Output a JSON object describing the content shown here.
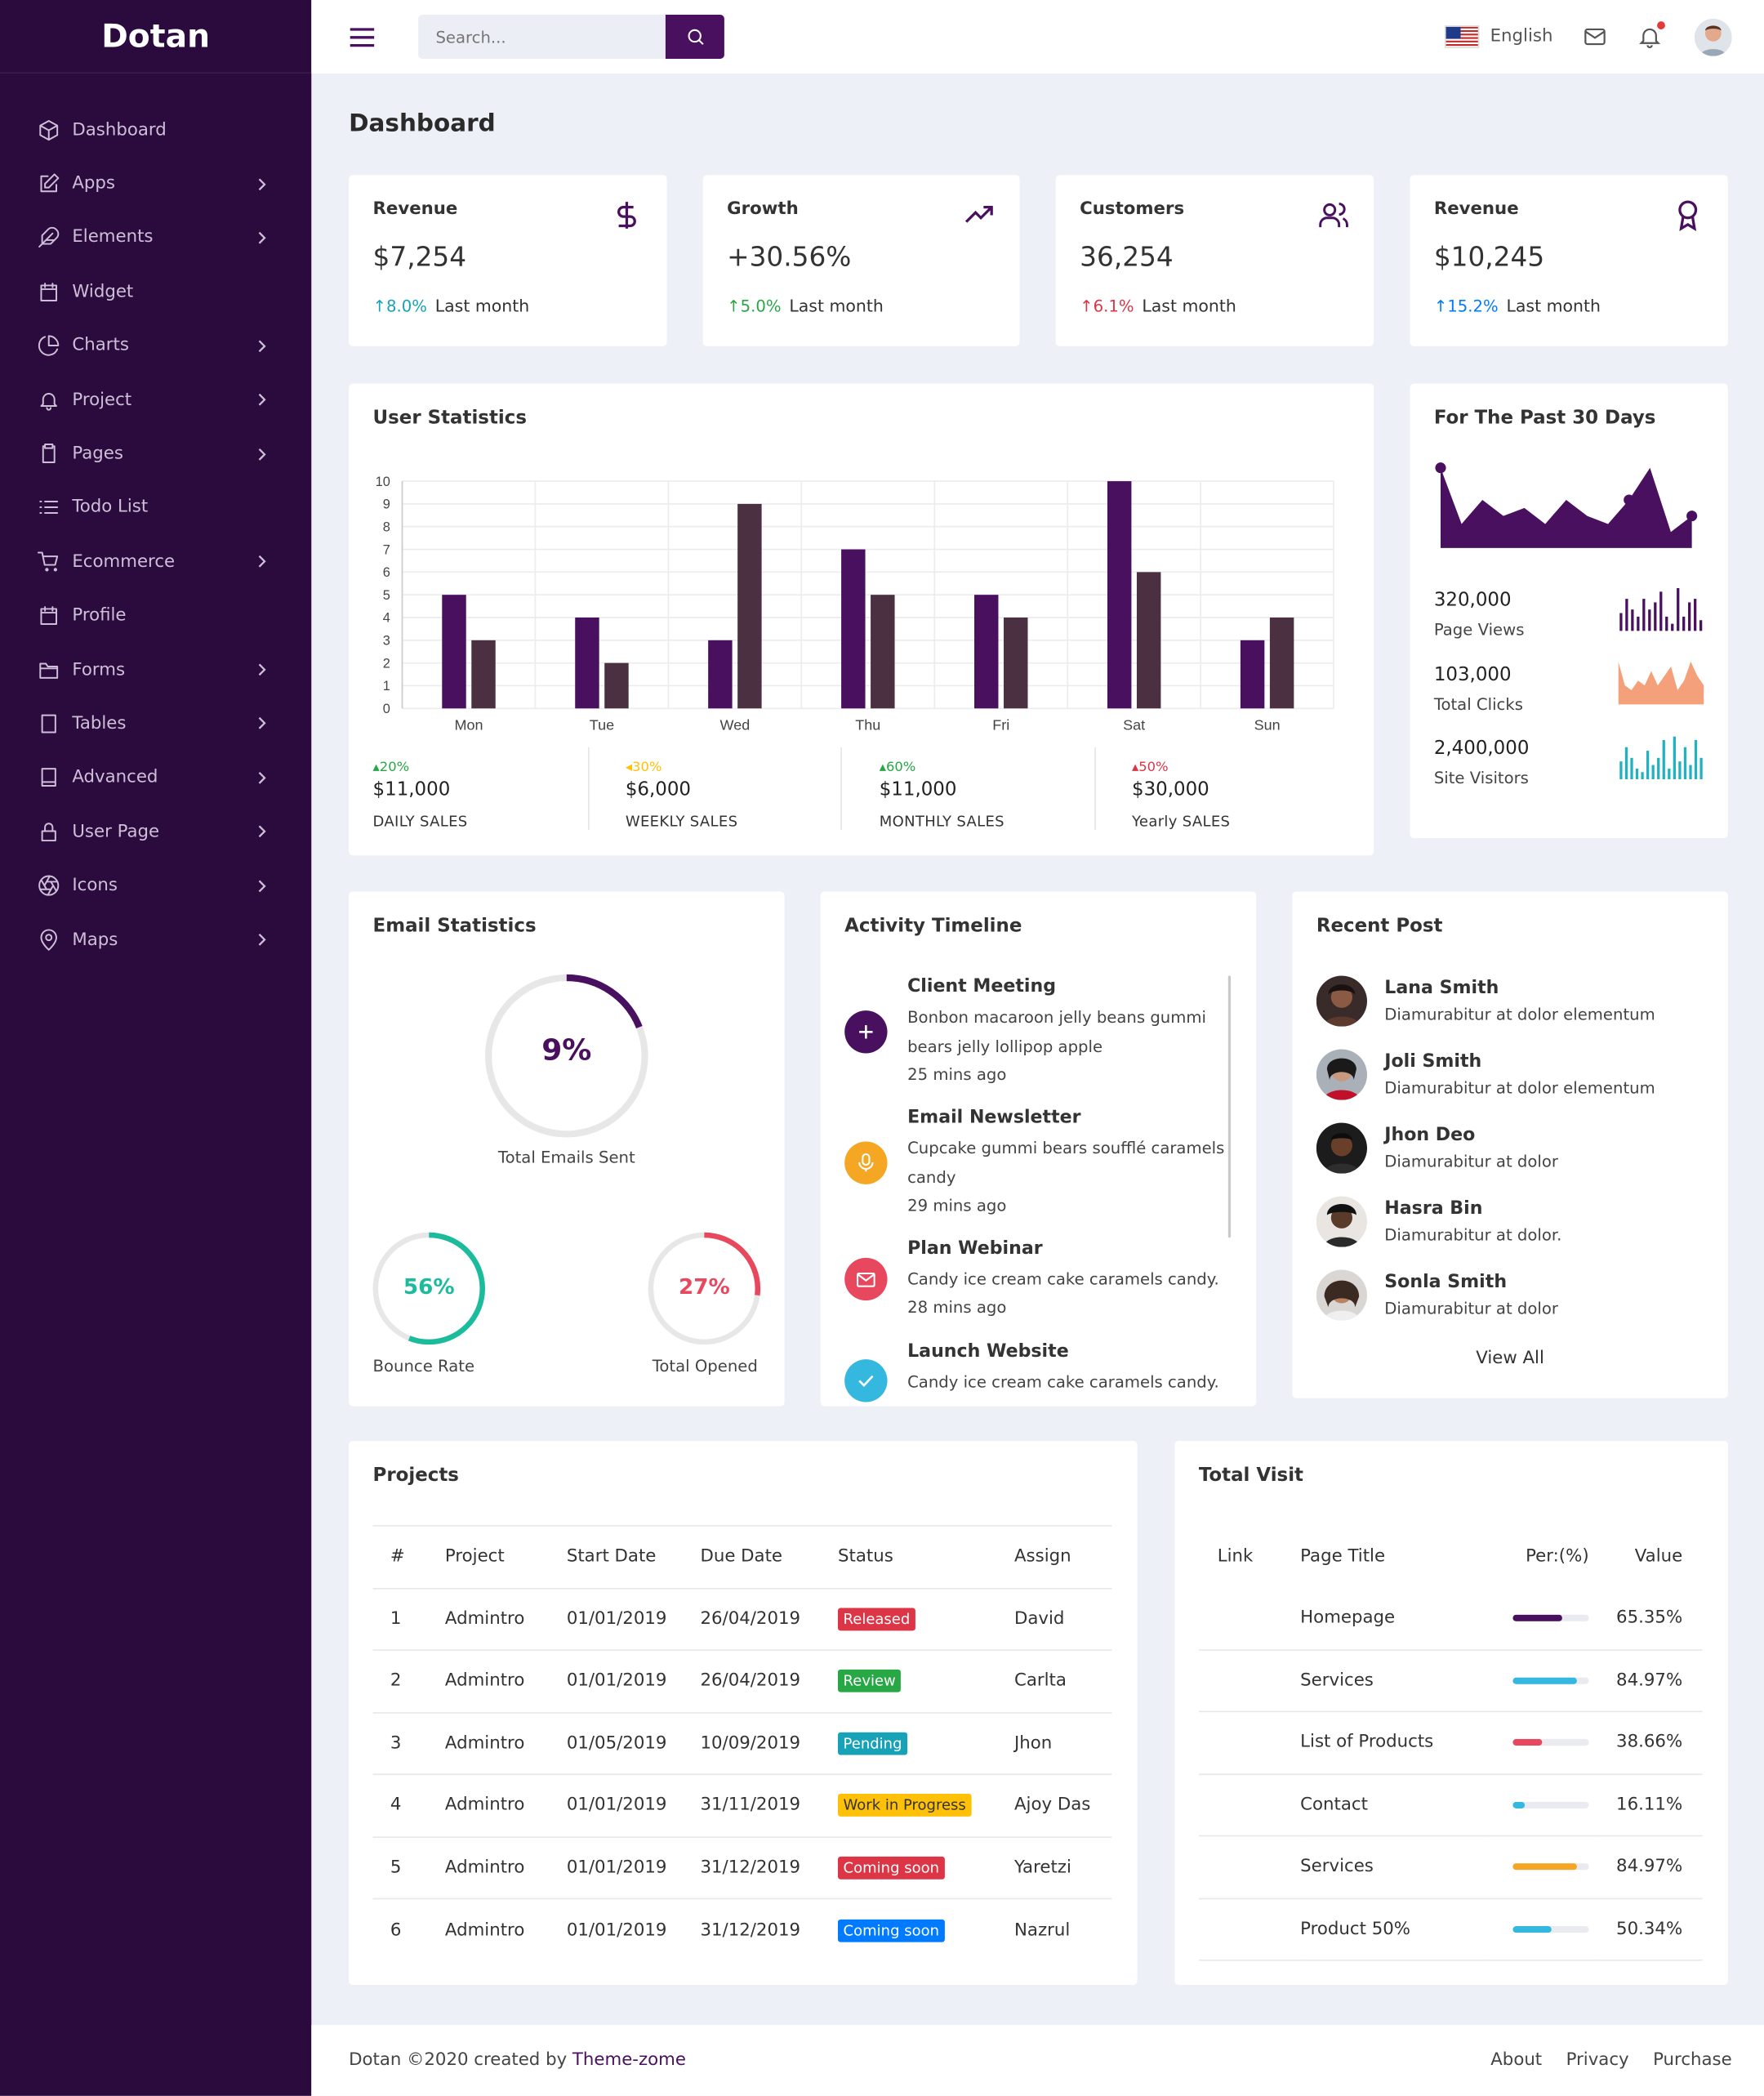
{
  "brand": {
    "name": "Dotan"
  },
  "sidebar": {
    "items": [
      {
        "label": "Dashboard",
        "icon": "cube-icon",
        "has_arrow": false
      },
      {
        "label": "Apps",
        "icon": "edit-icon",
        "has_arrow": true
      },
      {
        "label": "Elements",
        "icon": "feather-icon",
        "has_arrow": true
      },
      {
        "label": "Widget",
        "icon": "calendar-icon",
        "has_arrow": false
      },
      {
        "label": "Charts",
        "icon": "pie-chart-icon",
        "has_arrow": true
      },
      {
        "label": "Project",
        "icon": "bell-icon",
        "has_arrow": true
      },
      {
        "label": "Pages",
        "icon": "clipboard-icon",
        "has_arrow": true
      },
      {
        "label": "Todo List",
        "icon": "list-icon",
        "has_arrow": false
      },
      {
        "label": "Ecommerce",
        "icon": "cart-icon",
        "has_arrow": true
      },
      {
        "label": "Profile",
        "icon": "calendar-icon",
        "has_arrow": false
      },
      {
        "label": "Forms",
        "icon": "folder-icon",
        "has_arrow": true
      },
      {
        "label": "Tables",
        "icon": "table-icon",
        "has_arrow": true
      },
      {
        "label": "Advanced",
        "icon": "tablet-icon",
        "has_arrow": true
      },
      {
        "label": "User Page",
        "icon": "lock-icon",
        "has_arrow": true
      },
      {
        "label": "Icons",
        "icon": "aperture-icon",
        "has_arrow": true
      },
      {
        "label": "Maps",
        "icon": "map-pin-icon",
        "has_arrow": true
      }
    ]
  },
  "header": {
    "search_placeholder": "Search...",
    "language": "English"
  },
  "page": {
    "title": "Dashboard"
  },
  "stats": [
    {
      "title": "Revenue",
      "value": "$7,254",
      "change": "8.0%",
      "change_color": "#17a2b8",
      "period": "Last month",
      "icon": "dollar-icon"
    },
    {
      "title": "Growth",
      "value": "+30.56%",
      "change": "5.0%",
      "change_color": "#28a745",
      "period": "Last month",
      "icon": "trending-up-icon"
    },
    {
      "title": "Customers",
      "value": "36,254",
      "change": "6.1%",
      "change_color": "#dc3545",
      "period": "Last month",
      "icon": "users-icon"
    },
    {
      "title": "Revenue",
      "value": "$10,245",
      "change": "15.2%",
      "change_color": "#007bff",
      "period": "Last month",
      "icon": "award-icon"
    }
  ],
  "user_statistics": {
    "title": "User Statistics",
    "sales": [
      {
        "change": "20%",
        "change_color": "#28a745",
        "value": "$11,000",
        "label": "DAILY SALES"
      },
      {
        "change": "30%",
        "change_color": "#ffc107",
        "value": "$6,000",
        "label": "WEEKLY SALES"
      },
      {
        "change": "60%",
        "change_color": "#28a745",
        "value": "$11,000",
        "label": "MONTHLY SALES"
      },
      {
        "change": "50%",
        "change_color": "#dc3545",
        "value": "$30,000",
        "label": "Yearly SALES"
      }
    ]
  },
  "chart_data": {
    "type": "bar",
    "categories": [
      "Mon",
      "Tue",
      "Wed",
      "Thu",
      "Fri",
      "Sat",
      "Sun"
    ],
    "series": [
      {
        "values": [
          5,
          4,
          3,
          7,
          5,
          10,
          3
        ],
        "color": "#4a1060"
      },
      {
        "values": [
          3,
          2,
          9,
          5,
          4,
          6,
          4
        ],
        "color": "#4a3040"
      }
    ],
    "ylim": [
      0,
      10
    ],
    "yticks": [
      0,
      1,
      2,
      3,
      4,
      5,
      6,
      7,
      8,
      9,
      10
    ],
    "grid": true
  },
  "past30": {
    "title": "For The Past 30 Days",
    "area_values": [
      10,
      3,
      6,
      4,
      5,
      3,
      6,
      4,
      3,
      6,
      10,
      2,
      4
    ],
    "stats": [
      {
        "value": "320,000",
        "label": "Page Views",
        "color": "#4a1060",
        "bars": [
          5,
          9,
          6,
          4,
          9,
          6,
          8,
          11,
          4,
          2,
          12,
          4,
          8,
          9,
          3
        ]
      },
      {
        "value": "103,000",
        "label": "Total Clicks",
        "color": "#f4a07a",
        "bars": [
          9,
          4,
          3,
          5,
          4,
          7,
          4,
          6,
          8,
          3,
          5,
          9,
          6,
          4
        ]
      },
      {
        "value": "2,400,000",
        "label": "Site Visitors",
        "color": "#20b2c0",
        "bars": [
          5,
          9,
          6,
          3,
          2,
          8,
          4,
          6,
          11,
          3,
          12,
          5,
          9,
          4,
          11,
          6
        ]
      }
    ]
  },
  "email": {
    "title": "Email Statistics",
    "main": {
      "value": "9%",
      "percent": 9,
      "label": "Total Emails Sent",
      "color": "#4a1060"
    },
    "left": {
      "value": "56%",
      "percent": 56,
      "label": "Bounce Rate",
      "color": "#1abc9c"
    },
    "right": {
      "value": "27%",
      "percent": 27,
      "label": "Total Opened",
      "color": "#e8485e"
    }
  },
  "timeline": {
    "title": "Activity Timeline",
    "items": [
      {
        "title": "Client Meeting",
        "desc": "Bonbon macaroon jelly beans gummi bears jelly lollipop apple",
        "time": "25 mins ago",
        "icon": "plus-icon",
        "color": "#4a1060"
      },
      {
        "title": "Email Newsletter",
        "desc": "Cupcake gummi bears soufflé caramels candy",
        "time": "29 mins ago",
        "icon": "mic-icon",
        "color": "#f5a623"
      },
      {
        "title": "Plan Webinar",
        "desc": "Candy ice cream cake caramels candy.",
        "time": "28 mins ago",
        "icon": "mail-icon",
        "color": "#e8485e"
      },
      {
        "title": "Launch Website",
        "desc": "Candy ice cream cake caramels candy.",
        "time": "",
        "icon": "check-icon",
        "color": "#35b8e0"
      }
    ]
  },
  "recent_post": {
    "title": "Recent Post",
    "items": [
      {
        "name": "Lana Smith",
        "text": "Diamurabitur at dolor elementum"
      },
      {
        "name": "Joli Smith",
        "text": "Diamurabitur at dolor elementum"
      },
      {
        "name": "Jhon Deo",
        "text": "Diamurabitur at dolor"
      },
      {
        "name": "Hasra Bin",
        "text": "Diamurabitur at dolor."
      },
      {
        "name": "Sonla Smith",
        "text": "Diamurabitur at dolor"
      }
    ],
    "view_all": "View All"
  },
  "projects": {
    "title": "Projects",
    "headers": [
      "#",
      "Project",
      "Start Date",
      "Due Date",
      "Status",
      "Assign"
    ],
    "rows": [
      {
        "num": "1",
        "project": "Admintro",
        "start": "01/01/2019",
        "due": "26/04/2019",
        "status": "Released",
        "status_color": "#dc3545",
        "assign": "David"
      },
      {
        "num": "2",
        "project": "Admintro",
        "start": "01/01/2019",
        "due": "26/04/2019",
        "status": "Review",
        "status_color": "#28a745",
        "assign": "Carlta"
      },
      {
        "num": "3",
        "project": "Admintro",
        "start": "01/05/2019",
        "due": "10/09/2019",
        "status": "Pending",
        "status_color": "#17a2b8",
        "assign": "Jhon"
      },
      {
        "num": "4",
        "project": "Admintro",
        "start": "01/01/2019",
        "due": "31/11/2019",
        "status": "Work in Progress",
        "status_color": "#ffc107",
        "assign": "Ajoy Das"
      },
      {
        "num": "5",
        "project": "Admintro",
        "start": "01/01/2019",
        "due": "31/12/2019",
        "status": "Coming soon",
        "status_color": "#dc3545",
        "assign": "Yaretzi"
      },
      {
        "num": "6",
        "project": "Admintro",
        "start": "01/01/2019",
        "due": "31/12/2019",
        "status": "Coming soon",
        "status_color": "#007bff",
        "assign": "Nazrul"
      }
    ]
  },
  "visits": {
    "title": "Total Visit",
    "headers": [
      "Link",
      "Page Title",
      "Per:(%)",
      "Value"
    ],
    "rows": [
      {
        "page": "Homepage",
        "percent": 65.35,
        "value": "65.35%",
        "color": "#4a1060"
      },
      {
        "page": "Services",
        "percent": 84.97,
        "value": "84.97%",
        "color": "#35b8e0"
      },
      {
        "page": "List of Products",
        "percent": 38.66,
        "value": "38.66%",
        "color": "#e8485e"
      },
      {
        "page": "Contact",
        "percent": 16.11,
        "value": "16.11%",
        "color": "#35b8e0"
      },
      {
        "page": "Services",
        "percent": 84.97,
        "value": "84.97%",
        "color": "#f5a623"
      },
      {
        "page": "Product 50%",
        "percent": 50.34,
        "value": "50.34%",
        "color": "#35b8e0"
      }
    ]
  },
  "footer": {
    "copyright": "Dotan ©2020 created by ",
    "author": "Theme-zome",
    "links": [
      "About",
      "Privacy",
      "Purchase"
    ]
  }
}
